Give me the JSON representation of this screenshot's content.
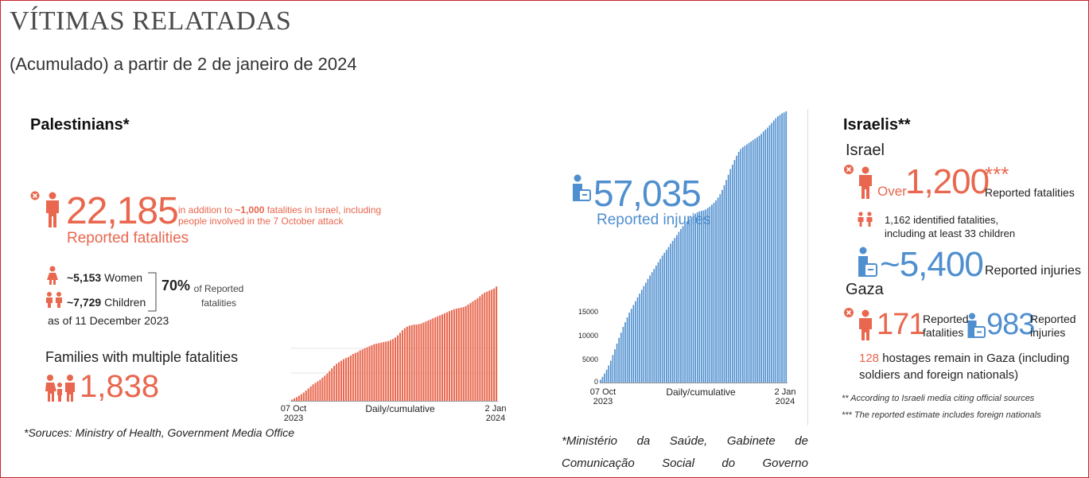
{
  "header": {
    "title": "VÍTIMAS RELATADAS",
    "subtitle": "(Acumulado) a partir de 2 de janeiro de 2024"
  },
  "palestinians": {
    "heading": "Palestinians*",
    "fatalities_value": "22,185",
    "fatalities_label": "Reported fatalities",
    "fatalities_note_prefix": "in addition to ",
    "fatalities_note_highlight": "~1,000",
    "fatalities_note_suffix": " fatalities in Israel, including people involved in the 7 October attack",
    "women_value": "~5,153",
    "women_label": "Women",
    "children_value": "~7,729",
    "children_label": "Children",
    "share_value": "70%",
    "share_label": "of Reported fatalities",
    "as_of": "as of 11 December 2023",
    "families_heading": "Families with multiple fatalities",
    "families_value": "1,838",
    "sources": "*Soruces: Ministry of Health, Government Media Office",
    "chart_tick_start": "07 Oct\n2023",
    "chart_tick_mid": "Daily/cumulative",
    "chart_tick_end": "2 Jan\n2024"
  },
  "injuries": {
    "value": "57,035",
    "label": "Reported injuries",
    "source": "*Ministério da Saúde, Gabinete de Comunicação Social do Governo",
    "chart_tick_start": "07 Oct\n2023",
    "chart_tick_mid": "Daily/cumulative",
    "chart_tick_end": "2 Jan\n2024",
    "y_ticks": [
      "0",
      "5000",
      "10000",
      "15000"
    ]
  },
  "israelis": {
    "heading": "Israelis**",
    "israel_heading": "Israel",
    "over_label": "Over",
    "fatalities_value": "1,200",
    "fatalities_stars": "***",
    "fatalities_label": "Reported fatalities",
    "identified_text_1": "1,162 identified fatalities,",
    "identified_text_2": "including at least 33 children",
    "injuries_value": "~5,400",
    "injuries_label": "Reported injuries",
    "gaza_heading": "Gaza",
    "gaza_fatalities_value": "171",
    "gaza_fatalities_label_1": "Reported",
    "gaza_fatalities_label_2": "fatalities",
    "gaza_injuries_value": "983",
    "gaza_injuries_label_1": "Reported",
    "gaza_injuries_label_2": "injuries",
    "hostages_value": "128",
    "hostages_text_1": " hostages remain in Gaza (including",
    "hostages_text_2": "soldiers and foreign nationals)",
    "footnote_1": "** According to Israeli media citing official sources",
    "footnote_2": "*** The reported estimate includes foreign nationals"
  },
  "colors": {
    "accent_orange": "#e8674e",
    "accent_blue": "#4f8fcf",
    "frame_red": "#c8262c"
  },
  "chart_data": [
    {
      "type": "bar",
      "x_range": [
        "07 Oct 2023",
        "2 Jan 2024"
      ],
      "xlabel": "Daily/cumulative",
      "ylabel": "",
      "ylim": [
        0,
        23000
      ],
      "grid": true,
      "values": [
        230,
        460,
        720,
        1000,
        1300,
        1600,
        2000,
        2400,
        2800,
        3200,
        3500,
        3800,
        4100,
        4500,
        4900,
        5300,
        5800,
        6300,
        6800,
        7200,
        7500,
        7800,
        8100,
        8300,
        8500,
        8800,
        9100,
        9300,
        9500,
        9800,
        10000,
        10200,
        10400,
        10600,
        10800,
        11000,
        11100,
        11200,
        11300,
        11400,
        11500,
        11600,
        11800,
        12000,
        12300,
        12700,
        13200,
        13700,
        14100,
        14400,
        14600,
        14700,
        14800,
        14800,
        14900,
        15000,
        15200,
        15400,
        15600,
        15800,
        16000,
        16200,
        16400,
        16600,
        16800,
        17000,
        17200,
        17400,
        17600,
        17800,
        17900,
        18000,
        18100,
        18200,
        18400,
        18700,
        19000,
        19300,
        19600,
        19900,
        20300,
        20700,
        21000,
        21200,
        21400,
        21600,
        21800,
        22185
      ]
    },
    {
      "type": "bar",
      "x_range": [
        "07 Oct 2023",
        "2 Jan 2024"
      ],
      "xlabel": "Daily/cumulative",
      "ylabel": "",
      "ylim": [
        0,
        57035
      ],
      "y_ticks": [
        0,
        5000,
        10000,
        15000
      ],
      "values": [
        600,
        1200,
        1900,
        2700,
        3600,
        4600,
        5800,
        7000,
        8200,
        9400,
        10500,
        11700,
        12700,
        13700,
        14700,
        15500,
        16300,
        17100,
        17900,
        18700,
        19500,
        20300,
        21000,
        21800,
        22500,
        23200,
        23900,
        24600,
        25300,
        26000,
        26700,
        27300,
        27900,
        28500,
        29200,
        29800,
        30400,
        31000,
        31700,
        32300,
        32900,
        33400,
        33900,
        34400,
        34800,
        35200,
        35500,
        35800,
        36000,
        36100,
        36200,
        36400,
        36700,
        37000,
        37400,
        37800,
        38300,
        38900,
        39600,
        40500,
        41500,
        42600,
        43700,
        44900,
        45800,
        46800,
        47700,
        48500,
        49100,
        49500,
        49800,
        50100,
        50400,
        50700,
        51000,
        51300,
        51600,
        51900,
        52300,
        52800,
        53200,
        53600,
        54100,
        54600,
        55100,
        55600,
        56000,
        56300,
        56600,
        56800,
        57035
      ]
    }
  ]
}
